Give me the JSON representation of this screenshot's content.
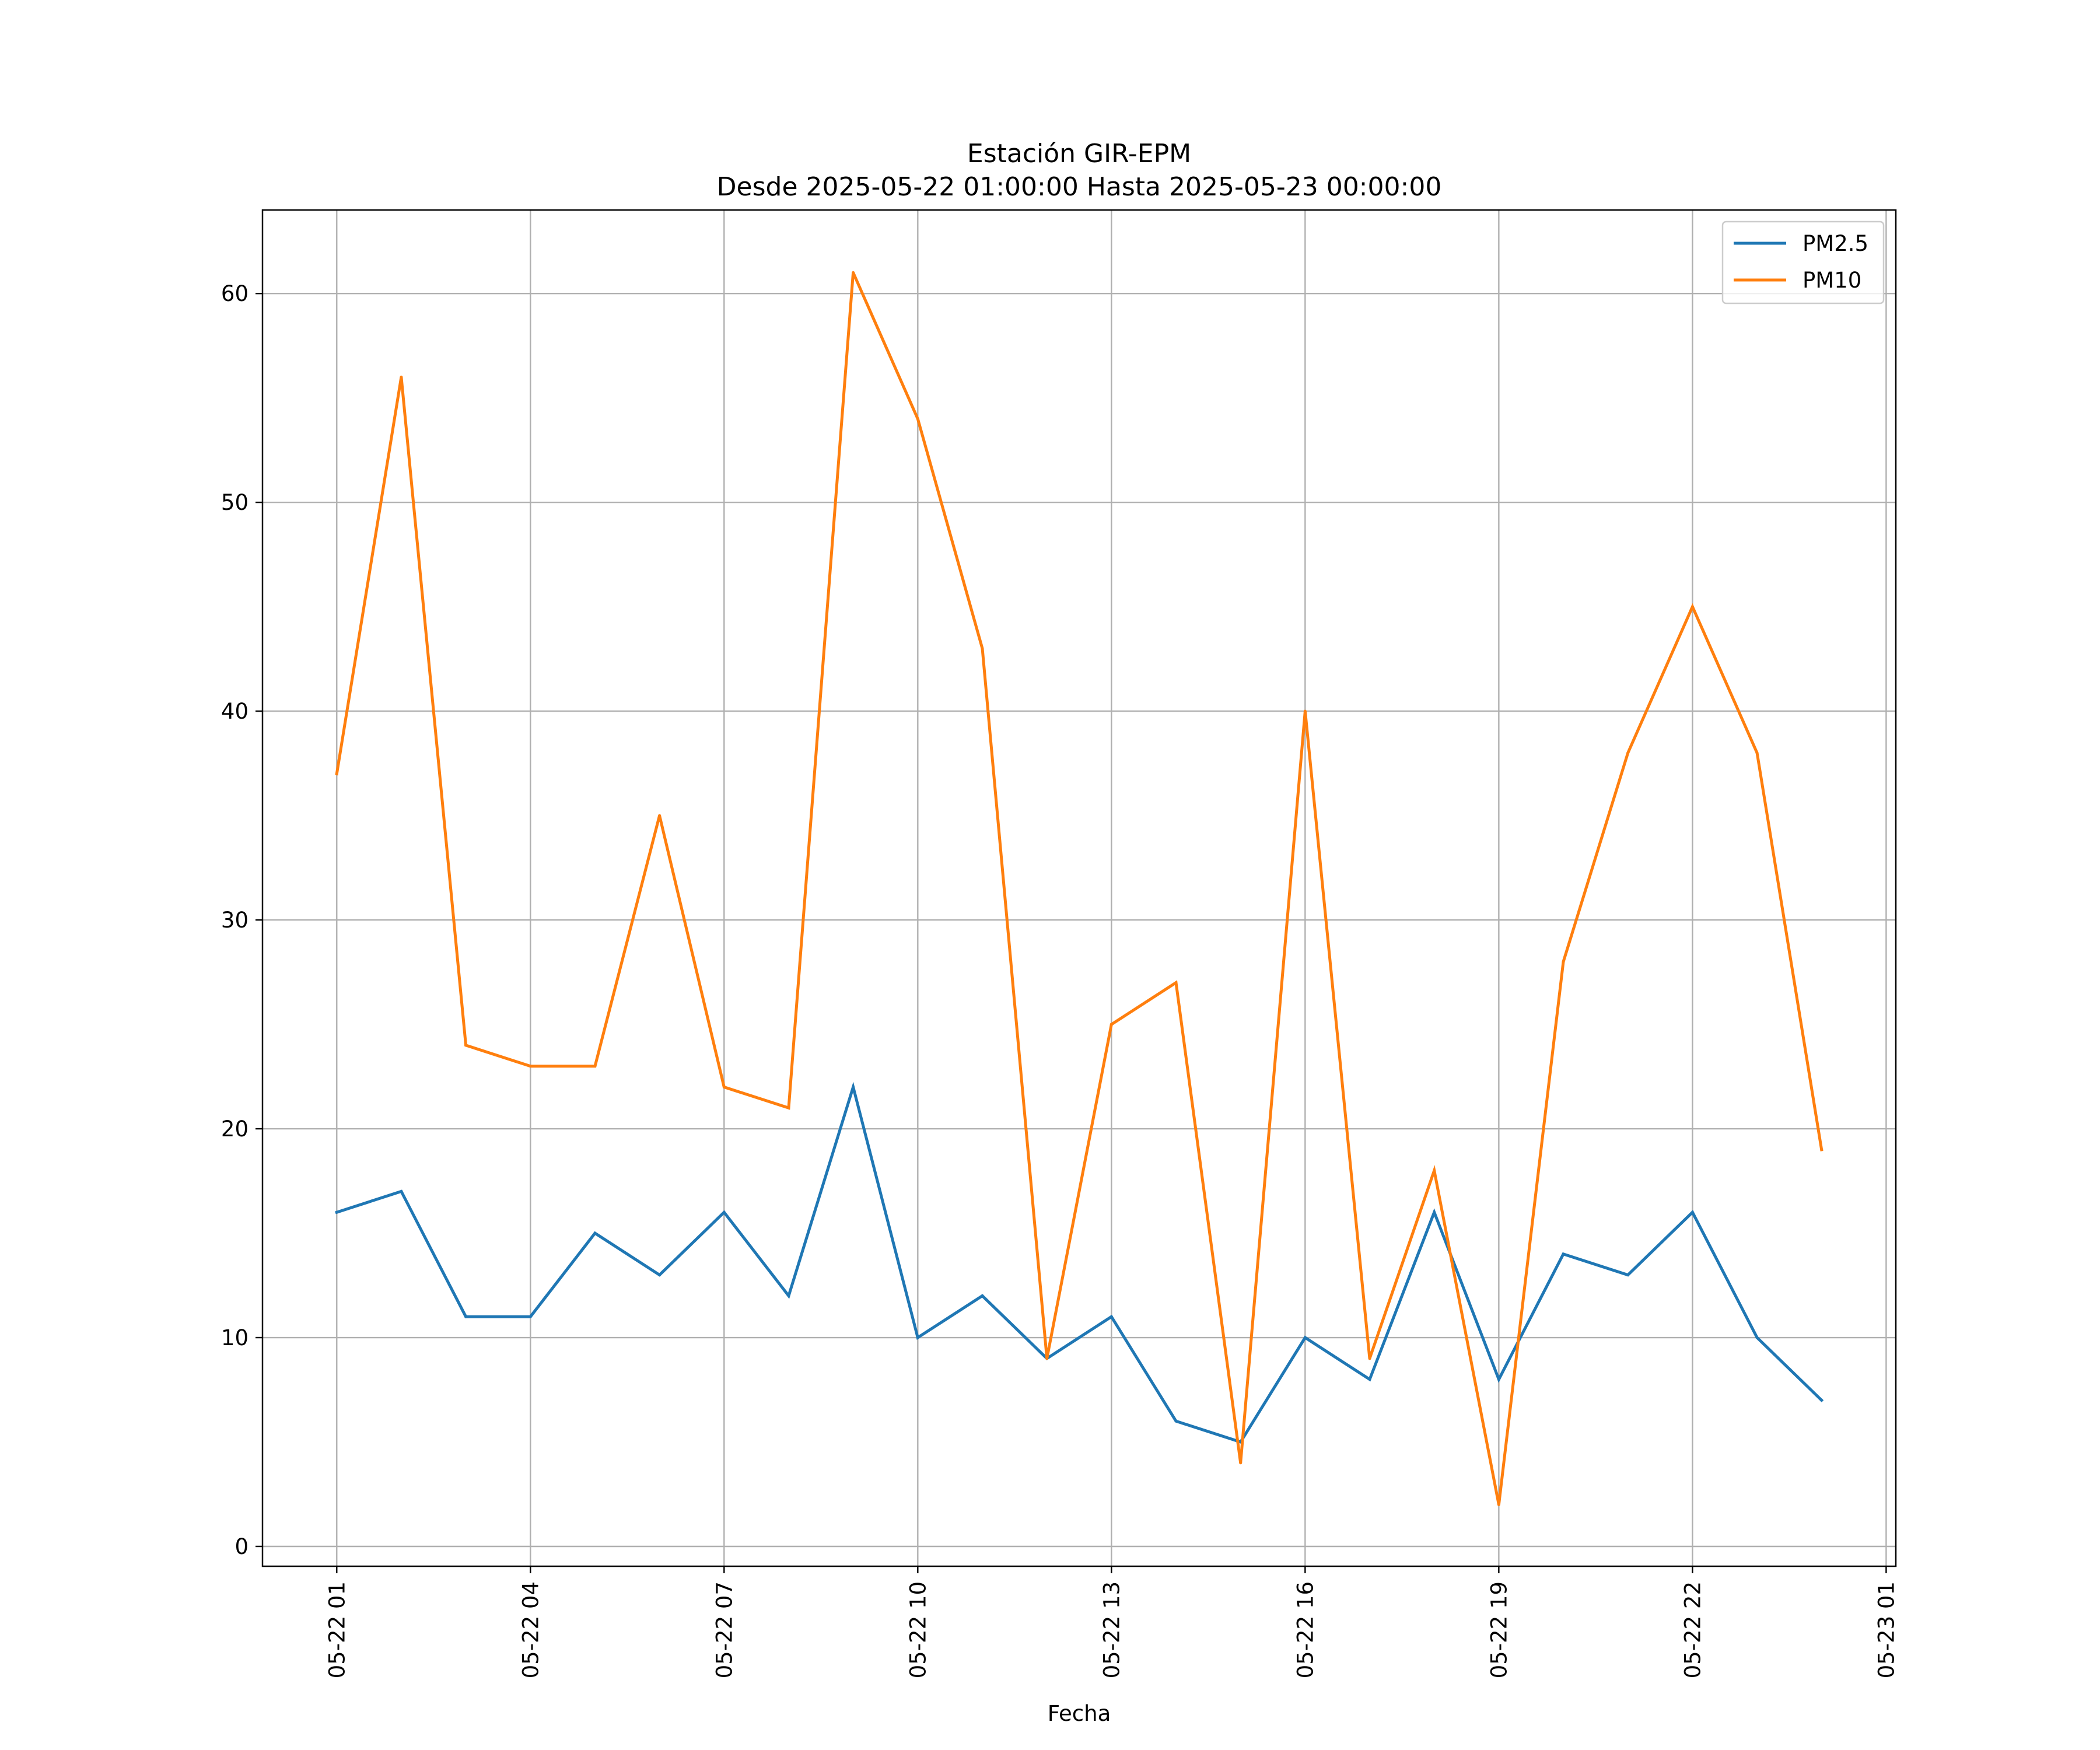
{
  "chart_data": {
    "type": "line",
    "title_lines": [
      "Estación GIR-EPM",
      "Desde 2025-05-22 01:00:00 Hasta 2025-05-23 00:00:00"
    ],
    "xlabel": "Fecha",
    "ylabel": "",
    "x": [
      "2025-05-22 01:00",
      "2025-05-22 02:00",
      "2025-05-22 03:00",
      "2025-05-22 04:00",
      "2025-05-22 05:00",
      "2025-05-22 06:00",
      "2025-05-22 07:00",
      "2025-05-22 08:00",
      "2025-05-22 09:00",
      "2025-05-22 10:00",
      "2025-05-22 11:00",
      "2025-05-22 12:00",
      "2025-05-22 13:00",
      "2025-05-22 14:00",
      "2025-05-22 15:00",
      "2025-05-22 16:00",
      "2025-05-22 17:00",
      "2025-05-22 18:00",
      "2025-05-22 19:00",
      "2025-05-22 20:00",
      "2025-05-22 21:00",
      "2025-05-22 22:00",
      "2025-05-22 23:00",
      "2025-05-23 00:00"
    ],
    "series": [
      {
        "name": "PM2.5",
        "color": "#1f77b4",
        "values": [
          16,
          17,
          11,
          11,
          15,
          13,
          16,
          12,
          22,
          10,
          12,
          9,
          11,
          6,
          5,
          10,
          8,
          16,
          8,
          14,
          13,
          16,
          10,
          7
        ]
      },
      {
        "name": "PM10",
        "color": "#ff7f0e",
        "values": [
          37,
          56,
          24,
          23,
          23,
          35,
          22,
          21,
          61,
          54,
          43,
          9,
          25,
          27,
          4,
          40,
          9,
          18,
          2,
          28,
          38,
          45,
          38,
          19
        ]
      }
    ],
    "xlim": [
      "2025-05-21 23:51",
      "2025-05-23 01:09"
    ],
    "ylim": [
      -0.95,
      64.0
    ],
    "x_ticks": [
      {
        "x": "2025-05-22 01:00",
        "label": "05-22 01"
      },
      {
        "x": "2025-05-22 04:00",
        "label": "05-22 04"
      },
      {
        "x": "2025-05-22 07:00",
        "label": "05-22 07"
      },
      {
        "x": "2025-05-22 10:00",
        "label": "05-22 10"
      },
      {
        "x": "2025-05-22 13:00",
        "label": "05-22 13"
      },
      {
        "x": "2025-05-22 16:00",
        "label": "05-22 16"
      },
      {
        "x": "2025-05-22 19:00",
        "label": "05-22 19"
      },
      {
        "x": "2025-05-22 22:00",
        "label": "05-22 22"
      },
      {
        "x": "2025-05-23 01:00",
        "label": "05-23 01"
      }
    ],
    "y_ticks": [
      0,
      10,
      20,
      30,
      40,
      50,
      60
    ],
    "grid": true,
    "legend_position": "top-right"
  }
}
